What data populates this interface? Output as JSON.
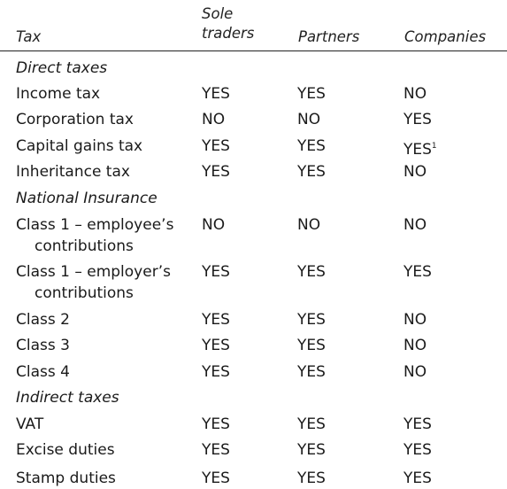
{
  "headers": {
    "tax": "Tax",
    "sole_line1": "Sole",
    "sole_line2": "traders",
    "partners": "Partners",
    "companies": "Companies"
  },
  "sections": {
    "direct": "Direct taxes",
    "ni": "National Insurance",
    "indirect": "Indirect taxes"
  },
  "rows": [
    {
      "label": "Income tax",
      "sole": "YES",
      "partners": "YES",
      "companies": "NO"
    },
    {
      "label": "Corporation tax",
      "sole": "NO",
      "partners": "NO",
      "companies": "YES"
    },
    {
      "label": "Capital gains tax",
      "sole": "YES",
      "partners": "YES",
      "companies": "YES",
      "footnote": "1"
    },
    {
      "label": "Inheritance tax",
      "sole": "YES",
      "partners": "YES",
      "companies": "NO"
    },
    {
      "label_line1": "Class 1 – employee’s",
      "label_line2": "contributions",
      "sole": "NO",
      "partners": "NO",
      "companies": "NO"
    },
    {
      "label_line1": "Class 1 – employer’s",
      "label_line2": "contributions",
      "sole": "YES",
      "partners": "YES",
      "companies": "YES"
    },
    {
      "label": "Class 2",
      "sole": "YES",
      "partners": "YES",
      "companies": "NO"
    },
    {
      "label": "Class 3",
      "sole": "YES",
      "partners": "YES",
      "companies": "NO"
    },
    {
      "label": "Class 4",
      "sole": "YES",
      "partners": "YES",
      "companies": "NO"
    },
    {
      "label": "VAT",
      "sole": "YES",
      "partners": "YES",
      "companies": "YES"
    },
    {
      "label": "Excise duties",
      "sole": "YES",
      "partners": "YES",
      "companies": "YES"
    },
    {
      "label": "Stamp duties",
      "sole": "YES",
      "partners": "YES",
      "companies": "YES"
    }
  ]
}
